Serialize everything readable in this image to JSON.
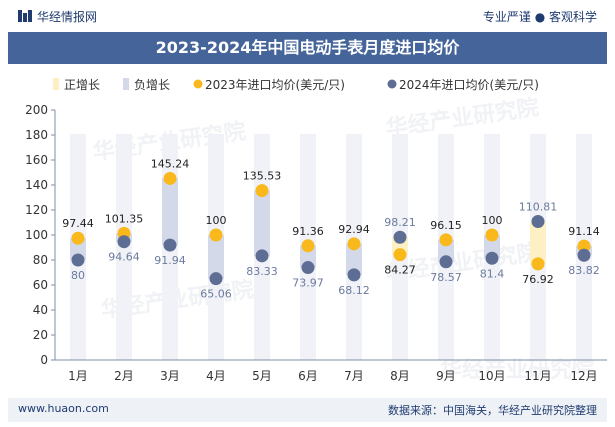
{
  "header": {
    "brand": "华经情报网",
    "slogan": "专业严谨 ● 客观科学"
  },
  "title": "2023-2024年中国电动手表月度进口均价",
  "footer": {
    "site": "www.huaon.com",
    "source": "数据来源：中国海关，华经产业研究院整理"
  },
  "watermark": "华经产业研究院",
  "colors": {
    "pos_bar": "#fdf0c4",
    "neg_bar": "#d3d9e8",
    "s2023": "#f9b81b",
    "s2024": "#5e6d93",
    "title_bg": "#44649a"
  },
  "chart_data": {
    "type": "scatter",
    "title": "2023-2024年中国电动手表月度进口均价",
    "categories": [
      "1月",
      "2月",
      "3月",
      "4月",
      "5月",
      "6月",
      "7月",
      "8月",
      "9月",
      "10月",
      "11月",
      "12月"
    ],
    "series": [
      {
        "name": "2023年进口均价(美元/只)",
        "values": [
          97.44,
          101.35,
          145.24,
          100,
          135.53,
          91.36,
          92.94,
          84.27,
          96.15,
          100,
          76.92,
          91.14
        ]
      },
      {
        "name": "2024年进口均价(美元/只)",
        "values": [
          80,
          94.64,
          91.94,
          65.06,
          83.33,
          73.97,
          68.12,
          98.21,
          78.57,
          81.4,
          110.81,
          83.82
        ]
      }
    ],
    "labels_2023": [
      "97.44",
      "101.35",
      "145.24",
      "100",
      "135.53",
      "91.36",
      "92.94",
      "84.27",
      "96.15",
      "100",
      "76.92",
      "91.14"
    ],
    "labels_2024": [
      "80",
      "94.64",
      "91.94",
      "65.06",
      "83.33",
      "73.97",
      "68.12",
      "98.21",
      "78.57",
      "81.4",
      "110.81",
      "83.82"
    ],
    "legend": [
      "正增长",
      "负增长",
      "2023年进口均价(美元/只)",
      "2024年进口均价(美元/只)"
    ],
    "ylim": [
      0,
      200
    ],
    "yticks": [
      0,
      20,
      40,
      60,
      80,
      100,
      120,
      140,
      160,
      180,
      200
    ],
    "xlabel": "",
    "ylabel": "",
    "grid": false,
    "legend_position": "top"
  }
}
